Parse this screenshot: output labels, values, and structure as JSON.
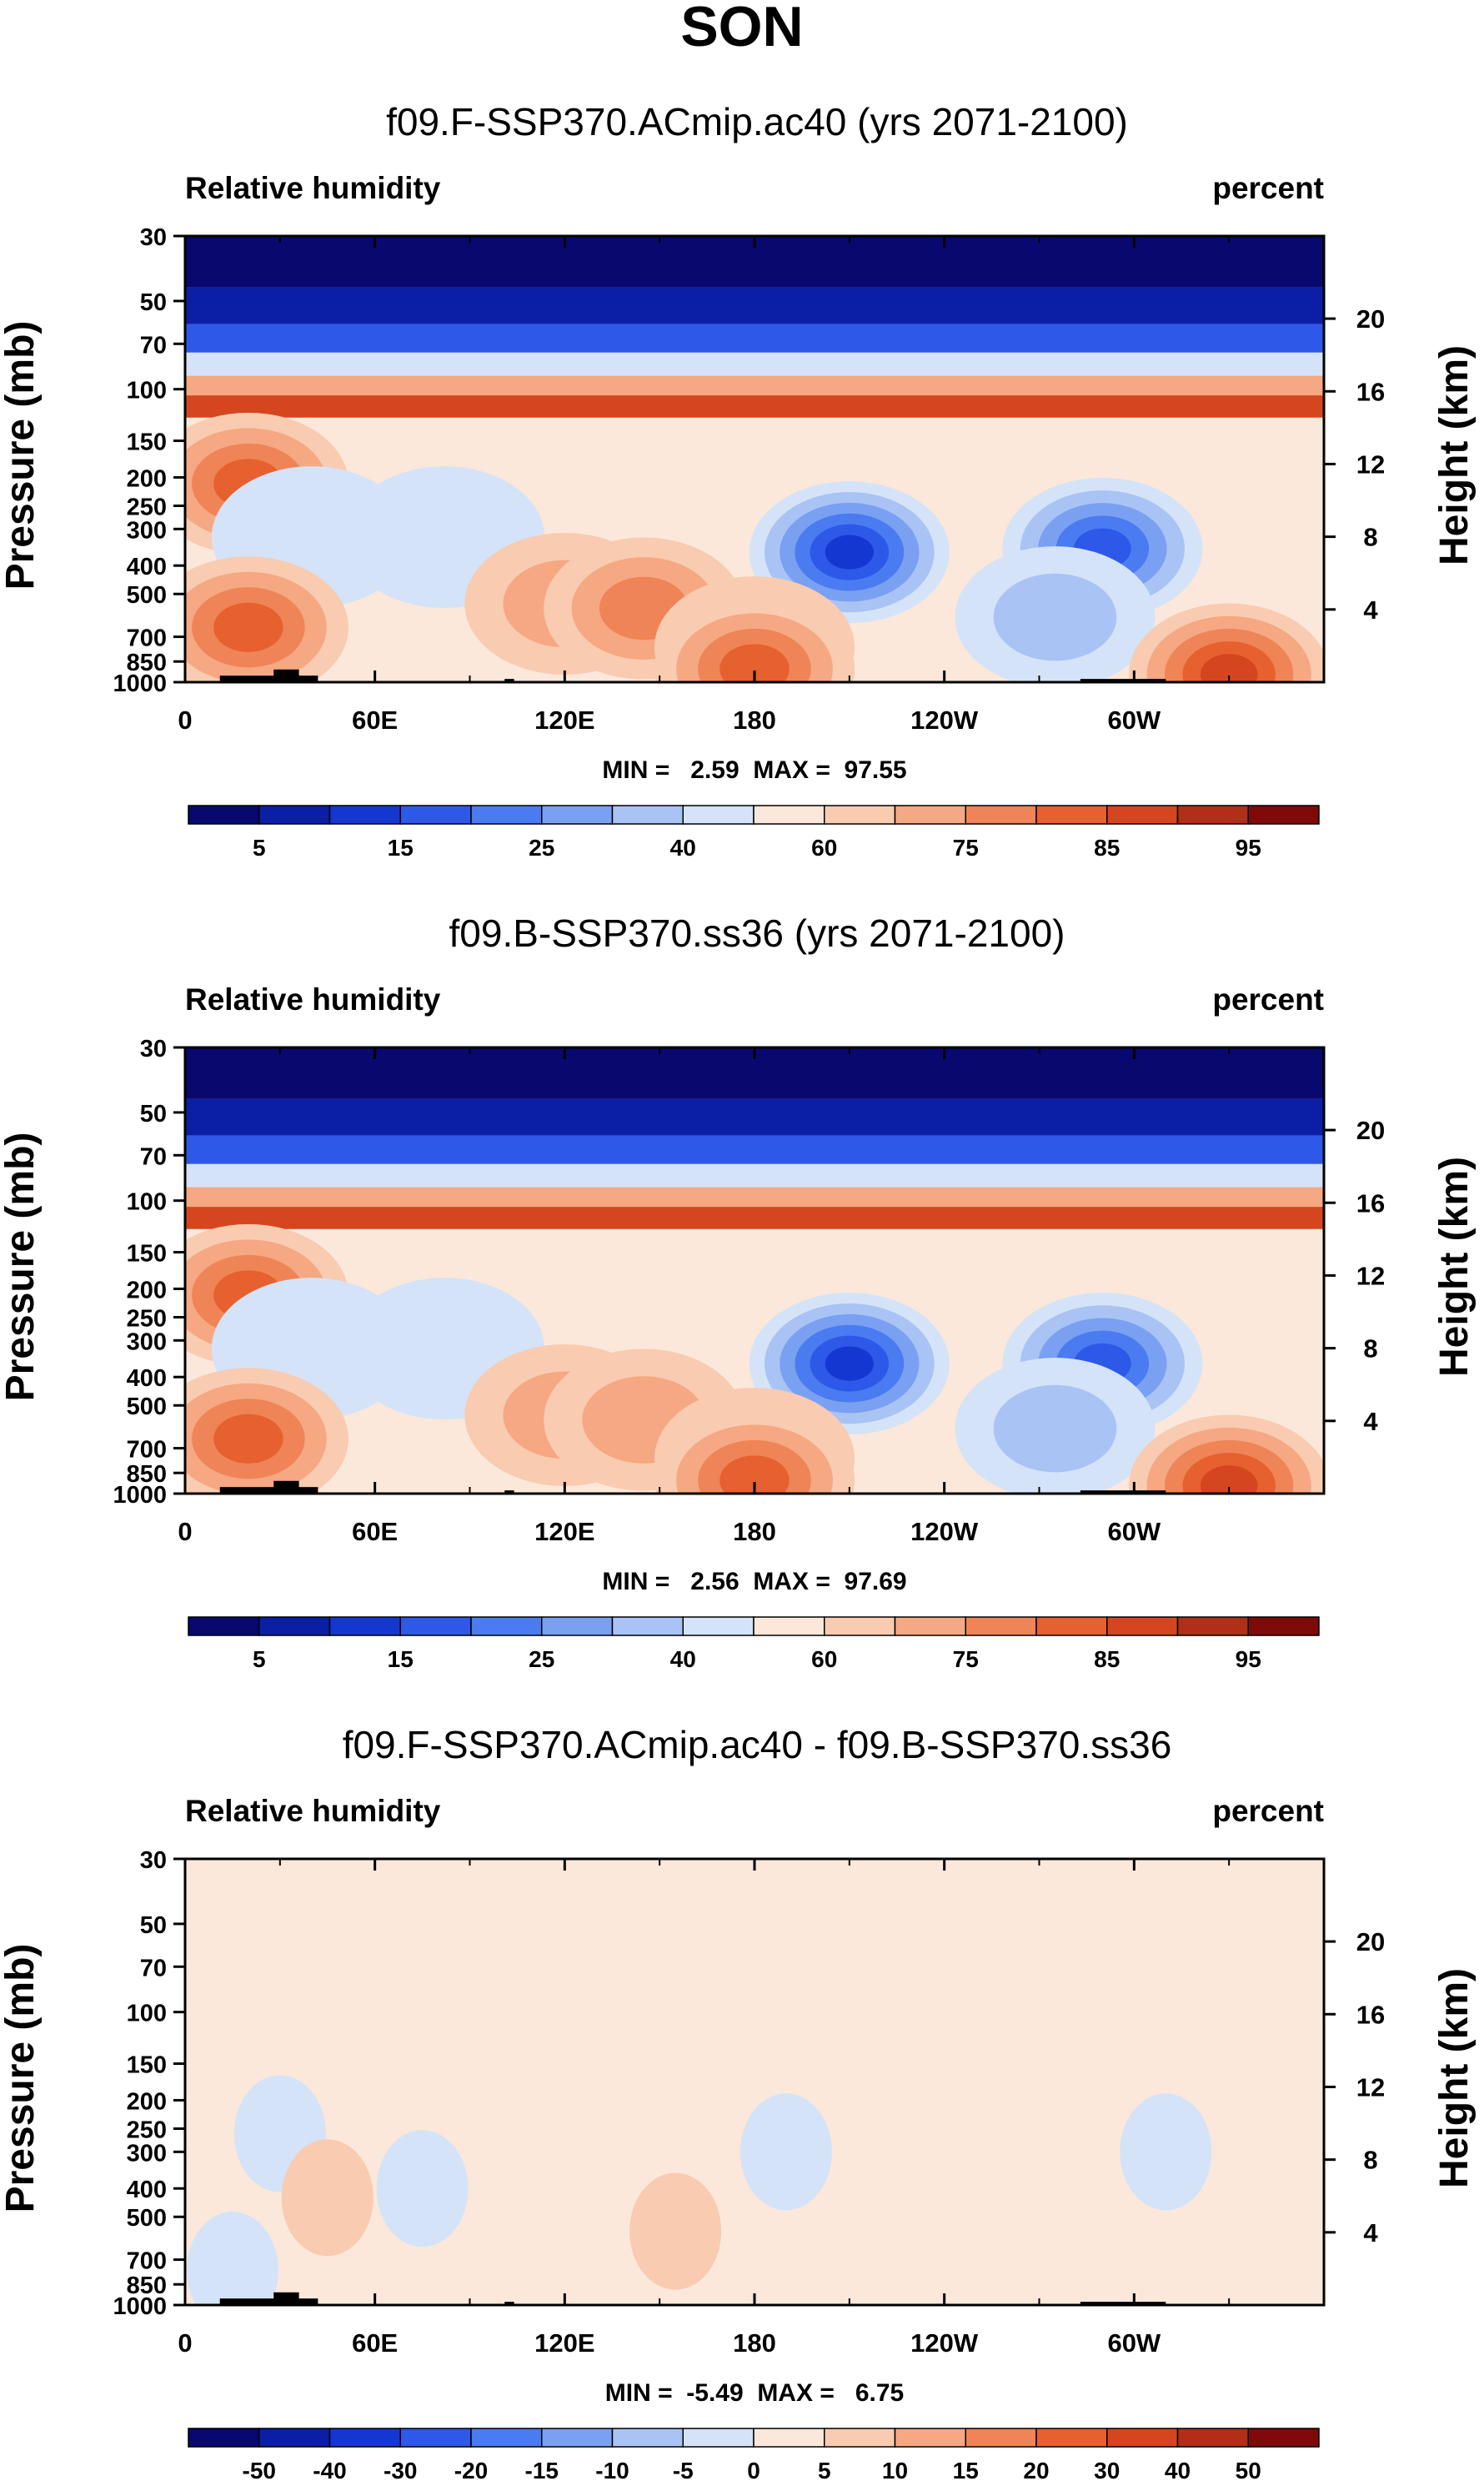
{
  "figure": {
    "title": "SON"
  },
  "colors": {
    "abs": [
      "#08086e",
      "#0b1ea6",
      "#1437d2",
      "#2e58e8",
      "#4a7bf0",
      "#7aa0f2",
      "#a9c3f5",
      "#d4e3f8",
      "#fbe8da",
      "#f9cbb0",
      "#f5a882",
      "#ef8456",
      "#e7602f",
      "#d5451f",
      "#b12e18",
      "#7f0a0a"
    ],
    "diff": [
      "#08086e",
      "#0b1ea6",
      "#1437d2",
      "#2e58e8",
      "#4a7bf0",
      "#7aa0f2",
      "#a9c3f5",
      "#d4e3f8",
      "#fbe8da",
      "#f9cbb0",
      "#f5a882",
      "#ef8456",
      "#e7602f",
      "#d5451f",
      "#b12e18",
      "#7f0a0a"
    ],
    "terrain": "#000000"
  },
  "chart_data": [
    {
      "type": "heatmap",
      "title": "f09.F-SSP370.ACmip.ac40 (yrs 2071-2100)",
      "left_label": "Relative humidity",
      "right_label": "percent",
      "ylabel": "Pressure (mb)",
      "ylabel_right": "Height (km)",
      "x_ticks": [
        "0",
        "60E",
        "120E",
        "180",
        "120W",
        "60W"
      ],
      "x_tick_values": [
        0,
        60,
        120,
        180,
        240,
        300
      ],
      "xlim": [
        0,
        360
      ],
      "pressure_ticks": [
        "30",
        "50",
        "70",
        "100",
        "150",
        "200",
        "250",
        "300",
        "400",
        "500",
        "700",
        "850",
        "1000"
      ],
      "pressure_tick_values": [
        30,
        50,
        70,
        100,
        150,
        200,
        250,
        300,
        400,
        500,
        700,
        850,
        1000
      ],
      "ylim": [
        1000,
        30
      ],
      "height_ticks": [
        "20",
        "16",
        "12",
        "8",
        "4"
      ],
      "height_tick_values": [
        20,
        16,
        12,
        8,
        4
      ],
      "stats": "MIN =   2.59  MAX =  97.55",
      "colorbar_levels": [
        5,
        10,
        15,
        20,
        25,
        30,
        40,
        50,
        60,
        65,
        75,
        80,
        85,
        90,
        95
      ],
      "colorbar_labels": [
        "5",
        "15",
        "25",
        "40",
        "60",
        "75",
        "85",
        "95"
      ],
      "field": {
        "base": 57,
        "blobs": [
          {
            "lon": 20,
            "p": 210,
            "value": 82
          },
          {
            "lon": 40,
            "p": 320,
            "value": 42
          },
          {
            "lon": 82,
            "p": 320,
            "value": 40
          },
          {
            "lon": 120,
            "p": 540,
            "value": 70
          },
          {
            "lon": 145,
            "p": 560,
            "value": 76
          },
          {
            "lon": 210,
            "p": 360,
            "value": 12
          },
          {
            "lon": 290,
            "p": 350,
            "value": 15
          },
          {
            "lon": 20,
            "p": 650,
            "value": 82
          },
          {
            "lon": 180,
            "p": 760,
            "value": 68
          },
          {
            "lon": 275,
            "p": 600,
            "value": 38
          },
          {
            "lon": 180,
            "p": 900,
            "value": 84
          },
          {
            "lon": 330,
            "p": 940,
            "value": 88
          }
        ]
      },
      "terrain": [
        {
          "lon_start": 11,
          "lon_end": 42,
          "p_top": 950
        },
        {
          "lon_start": 28,
          "lon_end": 36,
          "p_top": 905
        },
        {
          "lon_start": 101,
          "lon_end": 104,
          "p_top": 975
        },
        {
          "lon_start": 283,
          "lon_end": 310,
          "p_top": 975
        }
      ]
    },
    {
      "type": "heatmap",
      "title": "f09.B-SSP370.ss36 (yrs 2071-2100)",
      "left_label": "Relative humidity",
      "right_label": "percent",
      "ylabel": "Pressure (mb)",
      "ylabel_right": "Height (km)",
      "x_ticks": [
        "0",
        "60E",
        "120E",
        "180",
        "120W",
        "60W"
      ],
      "x_tick_values": [
        0,
        60,
        120,
        180,
        240,
        300
      ],
      "xlim": [
        0,
        360
      ],
      "pressure_ticks": [
        "30",
        "50",
        "70",
        "100",
        "150",
        "200",
        "250",
        "300",
        "400",
        "500",
        "700",
        "850",
        "1000"
      ],
      "pressure_tick_values": [
        30,
        50,
        70,
        100,
        150,
        200,
        250,
        300,
        400,
        500,
        700,
        850,
        1000
      ],
      "ylim": [
        1000,
        30
      ],
      "height_ticks": [
        "20",
        "16",
        "12",
        "8",
        "4"
      ],
      "height_tick_values": [
        20,
        16,
        12,
        8,
        4
      ],
      "stats": "MIN =   2.56  MAX =  97.69",
      "colorbar_levels": [
        5,
        10,
        15,
        20,
        25,
        30,
        40,
        50,
        60,
        65,
        75,
        80,
        85,
        90,
        95
      ],
      "colorbar_labels": [
        "5",
        "15",
        "25",
        "40",
        "60",
        "75",
        "85",
        "95"
      ],
      "field": {
        "base": 57,
        "blobs": [
          {
            "lon": 20,
            "p": 210,
            "value": 82
          },
          {
            "lon": 40,
            "p": 320,
            "value": 42
          },
          {
            "lon": 82,
            "p": 320,
            "value": 40
          },
          {
            "lon": 120,
            "p": 540,
            "value": 70
          },
          {
            "lon": 145,
            "p": 560,
            "value": 74
          },
          {
            "lon": 210,
            "p": 360,
            "value": 12
          },
          {
            "lon": 290,
            "p": 360,
            "value": 15
          },
          {
            "lon": 20,
            "p": 650,
            "value": 82
          },
          {
            "lon": 180,
            "p": 760,
            "value": 68
          },
          {
            "lon": 275,
            "p": 600,
            "value": 38
          },
          {
            "lon": 180,
            "p": 900,
            "value": 84
          },
          {
            "lon": 330,
            "p": 940,
            "value": 88
          }
        ]
      },
      "terrain": [
        {
          "lon_start": 11,
          "lon_end": 42,
          "p_top": 950
        },
        {
          "lon_start": 28,
          "lon_end": 36,
          "p_top": 905
        },
        {
          "lon_start": 101,
          "lon_end": 104,
          "p_top": 975
        },
        {
          "lon_start": 283,
          "lon_end": 310,
          "p_top": 975
        }
      ]
    },
    {
      "type": "heatmap",
      "title": "f09.F-SSP370.ACmip.ac40 - f09.B-SSP370.ss36",
      "left_label": "Relative humidity",
      "right_label": "percent",
      "ylabel": "Pressure (mb)",
      "ylabel_right": "Height (km)",
      "x_ticks": [
        "0",
        "60E",
        "120E",
        "180",
        "120W",
        "60W"
      ],
      "x_tick_values": [
        0,
        60,
        120,
        180,
        240,
        300
      ],
      "xlim": [
        0,
        360
      ],
      "pressure_ticks": [
        "30",
        "50",
        "70",
        "100",
        "150",
        "200",
        "250",
        "300",
        "400",
        "500",
        "700",
        "850",
        "1000"
      ],
      "pressure_tick_values": [
        30,
        50,
        70,
        100,
        150,
        200,
        250,
        300,
        400,
        500,
        700,
        850,
        1000
      ],
      "ylim": [
        1000,
        30
      ],
      "height_ticks": [
        "20",
        "16",
        "12",
        "8",
        "4"
      ],
      "height_tick_values": [
        20,
        16,
        12,
        8,
        4
      ],
      "stats": "MIN =  -5.49  MAX =   6.75",
      "colorbar_levels": [
        -50,
        -40,
        -30,
        -20,
        -15,
        -10,
        -5,
        0,
        5,
        10,
        15,
        20,
        30,
        40,
        50
      ],
      "colorbar_labels": [
        "-50",
        "-40",
        "-30",
        "-20",
        "-15",
        "-10",
        "-5",
        "0",
        "5",
        "10",
        "15",
        "20",
        "30",
        "40",
        "50"
      ],
      "field": {
        "base": 1,
        "blobs": [
          {
            "lon": 30,
            "p": 260,
            "value": -2
          },
          {
            "lon": 75,
            "p": 400,
            "value": -2
          },
          {
            "lon": 190,
            "p": 300,
            "value": -2
          },
          {
            "lon": 155,
            "p": 560,
            "value": 6
          },
          {
            "lon": 45,
            "p": 430,
            "value": 6
          },
          {
            "lon": 15,
            "p": 760,
            "value": -2
          },
          {
            "lon": 310,
            "p": 300,
            "value": -2
          }
        ]
      },
      "terrain": [
        {
          "lon_start": 11,
          "lon_end": 42,
          "p_top": 950
        },
        {
          "lon_start": 28,
          "lon_end": 36,
          "p_top": 905
        },
        {
          "lon_start": 101,
          "lon_end": 104,
          "p_top": 975
        },
        {
          "lon_start": 283,
          "lon_end": 310,
          "p_top": 975
        }
      ]
    }
  ]
}
